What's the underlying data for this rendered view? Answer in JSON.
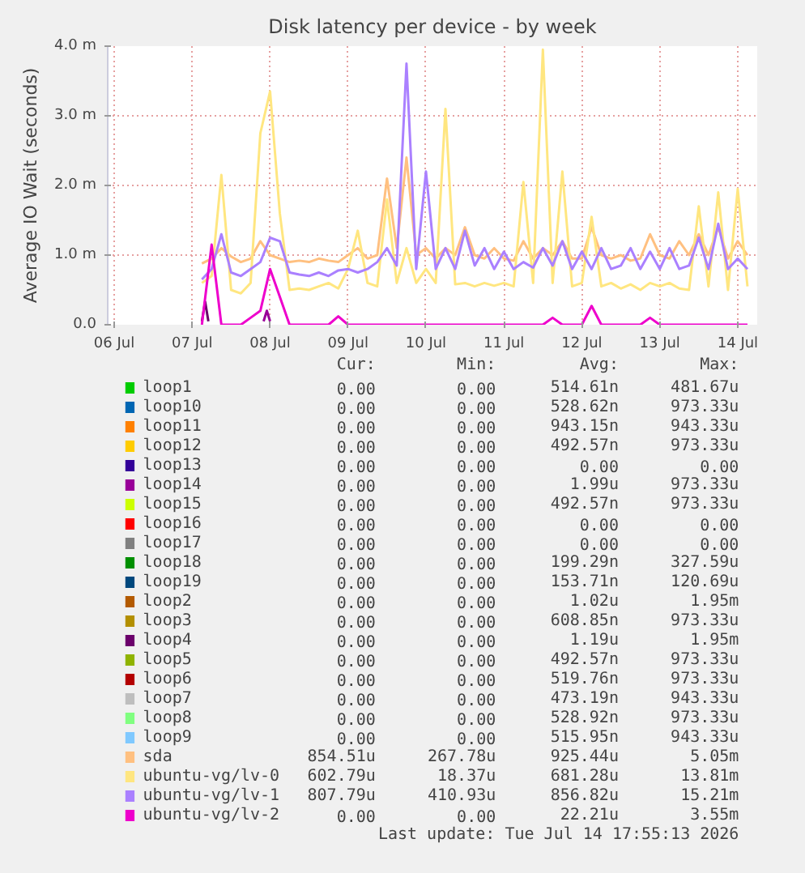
{
  "chart_data": {
    "type": "line",
    "title": "Disk latency per device - by week",
    "ylabel": "Average IO Wait (seconds)",
    "x": [
      "2026-07-07T15:00",
      "2026-07-07T18:00",
      "2026-07-07T21:00",
      "2026-07-08T00:00",
      "2026-07-08T03:00",
      "2026-07-08T06:00",
      "2026-07-08T09:00",
      "2026-07-08T12:00",
      "2026-07-08T15:00",
      "2026-07-08T18:00",
      "2026-07-08T21:00",
      "2026-07-09T00:00",
      "2026-07-09T03:00",
      "2026-07-09T06:00",
      "2026-07-09T09:00",
      "2026-07-09T12:00",
      "2026-07-09T15:00",
      "2026-07-09T18:00",
      "2026-07-09T21:00",
      "2026-07-10T00:00",
      "2026-07-10T03:00",
      "2026-07-10T06:00",
      "2026-07-10T09:00",
      "2026-07-10T12:00",
      "2026-07-10T15:00",
      "2026-07-10T18:00",
      "2026-07-10T21:00",
      "2026-07-11T00:00",
      "2026-07-11T03:00",
      "2026-07-11T06:00",
      "2026-07-11T09:00",
      "2026-07-11T12:00",
      "2026-07-11T15:00",
      "2026-07-11T18:00",
      "2026-07-11T21:00",
      "2026-07-12T00:00",
      "2026-07-12T03:00",
      "2026-07-12T06:00",
      "2026-07-12T09:00",
      "2026-07-12T12:00",
      "2026-07-12T15:00",
      "2026-07-12T18:00",
      "2026-07-12T21:00",
      "2026-07-13T00:00",
      "2026-07-13T03:00",
      "2026-07-13T06:00",
      "2026-07-13T09:00",
      "2026-07-13T12:00",
      "2026-07-13T15:00",
      "2026-07-13T18:00",
      "2026-07-13T21:00",
      "2026-07-14T00:00",
      "2026-07-14T03:00",
      "2026-07-14T06:00",
      "2026-07-14T09:00",
      "2026-07-14T12:00",
      "2026-07-14T15:00"
    ],
    "xlim": [
      "2026-07-06T10:00",
      "2026-07-14T18:00"
    ],
    "xticks": [
      {
        "value": "2026-07-06T12:00",
        "label": "06 Jul"
      },
      {
        "value": "2026-07-07T12:00",
        "label": "07 Jul"
      },
      {
        "value": "2026-07-08T12:00",
        "label": "08 Jul"
      },
      {
        "value": "2026-07-09T12:00",
        "label": "09 Jul"
      },
      {
        "value": "2026-07-10T12:00",
        "label": "10 Jul"
      },
      {
        "value": "2026-07-11T12:00",
        "label": "11 Jul"
      },
      {
        "value": "2026-07-12T12:00",
        "label": "12 Jul"
      },
      {
        "value": "2026-07-13T12:00",
        "label": "13 Jul"
      },
      {
        "value": "2026-07-14T12:00",
        "label": "14 Jul"
      }
    ],
    "ylim": [
      0,
      4
    ],
    "yticks": [
      {
        "value": 0,
        "label": "0.0"
      },
      {
        "value": 1,
        "label": "1.0 m"
      },
      {
        "value": 2,
        "label": "2.0 m"
      },
      {
        "value": 3,
        "label": "3.0 m"
      },
      {
        "value": 4,
        "label": "4.0 m"
      }
    ],
    "grid": true,
    "legend": "bottom",
    "line_style": "solid",
    "series": [
      {
        "name": "loop1",
        "color": "#00cc00",
        "values": [
          null,
          null,
          null,
          null,
          null,
          null,
          null,
          null,
          null,
          null,
          null,
          null,
          null,
          null,
          null,
          null,
          null,
          null,
          null,
          null,
          null,
          null,
          null,
          null,
          null,
          null,
          null,
          null,
          null,
          null,
          null,
          null,
          null,
          null,
          null,
          null,
          null,
          null,
          null,
          null,
          null,
          null,
          null,
          null,
          null,
          null,
          null,
          null,
          null,
          null,
          null,
          null,
          null,
          null,
          null,
          null,
          null
        ]
      },
      {
        "name": "loop10",
        "color": "#0066b3",
        "values": [
          null,
          null,
          null,
          null,
          null,
          null,
          null,
          null,
          null,
          null,
          null,
          null,
          null,
          null,
          null,
          null,
          null,
          null,
          null,
          null,
          null,
          null,
          null,
          null,
          null,
          null,
          null,
          null,
          null,
          null,
          null,
          null,
          null,
          null,
          null,
          null,
          null,
          null,
          null,
          null,
          null,
          null,
          null,
          null,
          null,
          null,
          null,
          null,
          null,
          null,
          null,
          null,
          null,
          null,
          null,
          null,
          null
        ]
      },
      {
        "name": "loop11",
        "color": "#ff8000",
        "values": [
          null,
          null,
          null,
          null,
          null,
          null,
          null,
          null,
          null,
          null,
          null,
          null,
          null,
          null,
          null,
          null,
          null,
          null,
          null,
          null,
          null,
          null,
          null,
          null,
          null,
          null,
          null,
          null,
          null,
          null,
          null,
          null,
          null,
          null,
          null,
          null,
          null,
          null,
          null,
          null,
          null,
          null,
          null,
          null,
          null,
          null,
          null,
          null,
          null,
          null,
          null,
          null,
          null,
          null,
          null,
          null,
          null
        ]
      },
      {
        "name": "loop12",
        "color": "#ffcc00",
        "values": [
          null,
          null,
          null,
          null,
          null,
          null,
          null,
          null,
          null,
          null,
          null,
          null,
          null,
          null,
          null,
          null,
          null,
          null,
          null,
          null,
          null,
          null,
          null,
          null,
          null,
          null,
          null,
          null,
          null,
          null,
          null,
          null,
          null,
          null,
          null,
          null,
          null,
          null,
          null,
          null,
          null,
          null,
          null,
          null,
          null,
          null,
          null,
          null,
          null,
          null,
          null,
          null,
          null,
          null,
          null,
          null,
          null
        ]
      },
      {
        "name": "loop13",
        "color": "#330099",
        "values": [
          null,
          null,
          null,
          null,
          null,
          null,
          null,
          null,
          null,
          null,
          null,
          null,
          null,
          null,
          null,
          null,
          null,
          null,
          null,
          null,
          null,
          null,
          null,
          null,
          null,
          null,
          null,
          null,
          null,
          null,
          null,
          null,
          null,
          null,
          null,
          null,
          null,
          null,
          null,
          null,
          null,
          null,
          null,
          null,
          null,
          null,
          null,
          null,
          null,
          null,
          null,
          null,
          null,
          null,
          null,
          null,
          null
        ]
      },
      {
        "name": "loop14",
        "color": "#990099",
        "x": [
          "2026-07-08T10:00",
          "2026-07-08T11:00",
          "2026-07-08T12:00"
        ],
        "values": [
          0.05,
          0.2,
          0.05
        ]
      },
      {
        "name": "loop15",
        "color": "#ccff00",
        "values": [
          null,
          null,
          null,
          null,
          null,
          null,
          null,
          null,
          null,
          null,
          null,
          null,
          null,
          null,
          null,
          null,
          null,
          null,
          null,
          null,
          null,
          null,
          null,
          null,
          null,
          null,
          null,
          null,
          null,
          null,
          null,
          null,
          null,
          null,
          null,
          null,
          null,
          null,
          null,
          null,
          null,
          null,
          null,
          null,
          null,
          null,
          null,
          null,
          null,
          null,
          null,
          null,
          null,
          null,
          null,
          null,
          null
        ]
      },
      {
        "name": "loop16",
        "color": "#ff0000",
        "values": [
          null,
          null,
          null,
          null,
          null,
          null,
          null,
          null,
          null,
          null,
          null,
          null,
          null,
          null,
          null,
          null,
          null,
          null,
          null,
          null,
          null,
          null,
          null,
          null,
          null,
          null,
          null,
          null,
          null,
          null,
          null,
          null,
          null,
          null,
          null,
          null,
          null,
          null,
          null,
          null,
          null,
          null,
          null,
          null,
          null,
          null,
          null,
          null,
          null,
          null,
          null,
          null,
          null,
          null,
          null,
          null,
          null
        ]
      },
      {
        "name": "loop17",
        "color": "#808080",
        "values": [
          null,
          null,
          null,
          null,
          null,
          null,
          null,
          null,
          null,
          null,
          null,
          null,
          null,
          null,
          null,
          null,
          null,
          null,
          null,
          null,
          null,
          null,
          null,
          null,
          null,
          null,
          null,
          null,
          null,
          null,
          null,
          null,
          null,
          null,
          null,
          null,
          null,
          null,
          null,
          null,
          null,
          null,
          null,
          null,
          null,
          null,
          null,
          null,
          null,
          null,
          null,
          null,
          null,
          null,
          null,
          null,
          null
        ]
      },
      {
        "name": "loop18",
        "color": "#008f00",
        "values": [
          null,
          null,
          null,
          null,
          null,
          null,
          null,
          null,
          null,
          null,
          null,
          null,
          null,
          null,
          null,
          null,
          null,
          null,
          null,
          null,
          null,
          null,
          null,
          null,
          null,
          null,
          null,
          null,
          null,
          null,
          null,
          null,
          null,
          null,
          null,
          null,
          null,
          null,
          null,
          null,
          null,
          null,
          null,
          null,
          null,
          null,
          null,
          null,
          null,
          null,
          null,
          null,
          null,
          null,
          null,
          null,
          null
        ]
      },
      {
        "name": "loop19",
        "color": "#00487d",
        "values": [
          null,
          null,
          null,
          null,
          null,
          null,
          null,
          null,
          null,
          null,
          null,
          null,
          null,
          null,
          null,
          null,
          null,
          null,
          null,
          null,
          null,
          null,
          null,
          null,
          null,
          null,
          null,
          null,
          null,
          null,
          null,
          null,
          null,
          null,
          null,
          null,
          null,
          null,
          null,
          null,
          null,
          null,
          null,
          null,
          null,
          null,
          null,
          null,
          null,
          null,
          null,
          null,
          null,
          null,
          null,
          null,
          null
        ]
      },
      {
        "name": "loop2",
        "color": "#b35a00",
        "values": [
          null,
          null,
          null,
          null,
          null,
          null,
          null,
          null,
          null,
          null,
          null,
          null,
          null,
          null,
          null,
          null,
          null,
          null,
          null,
          null,
          null,
          null,
          null,
          null,
          null,
          null,
          null,
          null,
          null,
          null,
          null,
          null,
          null,
          null,
          null,
          null,
          null,
          null,
          null,
          null,
          null,
          null,
          null,
          null,
          null,
          null,
          null,
          null,
          null,
          null,
          null,
          null,
          null,
          null,
          null,
          null,
          null
        ]
      },
      {
        "name": "loop3",
        "color": "#b38f00",
        "values": [
          null,
          null,
          null,
          null,
          null,
          null,
          null,
          null,
          null,
          null,
          null,
          null,
          null,
          null,
          null,
          null,
          null,
          null,
          null,
          null,
          null,
          null,
          null,
          null,
          null,
          null,
          null,
          null,
          null,
          null,
          null,
          null,
          null,
          null,
          null,
          null,
          null,
          null,
          null,
          null,
          null,
          null,
          null,
          null,
          null,
          null,
          null,
          null,
          null,
          null,
          null,
          null,
          null,
          null,
          null,
          null,
          null
        ]
      },
      {
        "name": "loop4",
        "color": "#6b006b",
        "x": [
          "2026-07-07T15:00",
          "2026-07-07T16:00",
          "2026-07-07T17:00"
        ],
        "values": [
          0.05,
          0.33,
          0.05
        ]
      },
      {
        "name": "loop5",
        "color": "#8fb300",
        "values": [
          null,
          null,
          null,
          null,
          null,
          null,
          null,
          null,
          null,
          null,
          null,
          null,
          null,
          null,
          null,
          null,
          null,
          null,
          null,
          null,
          null,
          null,
          null,
          null,
          null,
          null,
          null,
          null,
          null,
          null,
          null,
          null,
          null,
          null,
          null,
          null,
          null,
          null,
          null,
          null,
          null,
          null,
          null,
          null,
          null,
          null,
          null,
          null,
          null,
          null,
          null,
          null,
          null,
          null,
          null,
          null,
          null
        ]
      },
      {
        "name": "loop6",
        "color": "#b30000",
        "values": [
          null,
          null,
          null,
          null,
          null,
          null,
          null,
          null,
          null,
          null,
          null,
          null,
          null,
          null,
          null,
          null,
          null,
          null,
          null,
          null,
          null,
          null,
          null,
          null,
          null,
          null,
          null,
          null,
          null,
          null,
          null,
          null,
          null,
          null,
          null,
          null,
          null,
          null,
          null,
          null,
          null,
          null,
          null,
          null,
          null,
          null,
          null,
          null,
          null,
          null,
          null,
          null,
          null,
          null,
          null,
          null,
          null
        ]
      },
      {
        "name": "loop7",
        "color": "#bebebe",
        "values": [
          null,
          null,
          null,
          null,
          null,
          null,
          null,
          null,
          null,
          null,
          null,
          null,
          null,
          null,
          null,
          null,
          null,
          null,
          null,
          null,
          null,
          null,
          null,
          null,
          null,
          null,
          null,
          null,
          null,
          null,
          null,
          null,
          null,
          null,
          null,
          null,
          null,
          null,
          null,
          null,
          null,
          null,
          null,
          null,
          null,
          null,
          null,
          null,
          null,
          null,
          null,
          null,
          null,
          null,
          null,
          null,
          null
        ]
      },
      {
        "name": "loop8",
        "color": "#80ff80",
        "values": [
          null,
          null,
          null,
          null,
          null,
          null,
          null,
          null,
          null,
          null,
          null,
          null,
          null,
          null,
          null,
          null,
          null,
          null,
          null,
          null,
          null,
          null,
          null,
          null,
          null,
          null,
          null,
          null,
          null,
          null,
          null,
          null,
          null,
          null,
          null,
          null,
          null,
          null,
          null,
          null,
          null,
          null,
          null,
          null,
          null,
          null,
          null,
          null,
          null,
          null,
          null,
          null,
          null,
          null,
          null,
          null,
          null
        ]
      },
      {
        "name": "loop9",
        "color": "#80c9ff",
        "values": [
          null,
          null,
          null,
          null,
          null,
          null,
          null,
          null,
          null,
          null,
          null,
          null,
          null,
          null,
          null,
          null,
          null,
          null,
          null,
          null,
          null,
          null,
          null,
          null,
          null,
          null,
          null,
          null,
          null,
          null,
          null,
          null,
          null,
          null,
          null,
          null,
          null,
          null,
          null,
          null,
          null,
          null,
          null,
          null,
          null,
          null,
          null,
          null,
          null,
          null,
          null,
          null,
          null,
          null,
          null,
          null,
          null
        ]
      },
      {
        "name": "sda",
        "color": "#ffc080",
        "values": [
          0.88,
          0.95,
          1.1,
          0.98,
          0.9,
          0.95,
          1.2,
          1.0,
          0.95,
          0.9,
          0.92,
          0.9,
          0.95,
          0.92,
          0.9,
          1.0,
          1.1,
          0.95,
          1.0,
          2.1,
          1.1,
          2.4,
          1.0,
          1.1,
          0.95,
          1.1,
          1.0,
          1.4,
          1.0,
          0.95,
          1.1,
          0.95,
          0.92,
          1.2,
          0.95,
          1.1,
          1.0,
          1.2,
          0.95,
          0.95,
          1.4,
          1.0,
          0.95,
          1.0,
          0.92,
          0.95,
          1.3,
          1.0,
          0.95,
          1.2,
          1.0,
          1.3,
          1.0,
          1.4,
          0.95,
          1.2,
          1.0
        ]
      },
      {
        "name": "ubuntu-vg/lv-0",
        "color": "#ffe680",
        "values": [
          0.6,
          0.7,
          2.15,
          0.5,
          0.45,
          0.6,
          2.75,
          3.35,
          1.6,
          0.5,
          0.52,
          0.5,
          0.55,
          0.6,
          0.52,
          0.8,
          1.35,
          0.6,
          0.55,
          1.8,
          0.6,
          1.1,
          0.6,
          0.8,
          0.6,
          3.1,
          0.58,
          0.6,
          0.55,
          0.6,
          0.56,
          0.6,
          0.55,
          2.05,
          0.6,
          3.95,
          0.6,
          2.2,
          0.55,
          0.6,
          1.55,
          0.55,
          0.6,
          0.52,
          0.58,
          0.5,
          0.6,
          0.55,
          0.6,
          0.52,
          0.5,
          1.7,
          0.55,
          1.9,
          0.5,
          1.95,
          0.55
        ]
      },
      {
        "name": "ubuntu-vg/lv-1",
        "color": "#aa80ff",
        "values": [
          0.65,
          0.8,
          1.3,
          0.75,
          0.7,
          0.8,
          0.9,
          1.25,
          1.2,
          0.75,
          0.72,
          0.7,
          0.75,
          0.7,
          0.78,
          0.8,
          0.75,
          0.8,
          0.9,
          1.1,
          0.85,
          3.75,
          0.8,
          2.2,
          0.8,
          1.1,
          0.8,
          1.35,
          0.85,
          1.1,
          0.8,
          1.05,
          0.8,
          0.9,
          0.82,
          1.1,
          0.85,
          1.2,
          0.8,
          1.05,
          0.8,
          1.1,
          0.8,
          0.85,
          1.1,
          0.8,
          1.05,
          0.8,
          1.1,
          0.8,
          0.85,
          1.25,
          0.8,
          1.45,
          0.8,
          0.95,
          0.8
        ]
      },
      {
        "name": "ubuntu-vg/lv-2",
        "color": "#ee00cc",
        "values": [
          0,
          1.15,
          0,
          0,
          0,
          0.1,
          0.2,
          0.8,
          0.4,
          0,
          0,
          0,
          0,
          0,
          0.12,
          0,
          0,
          0,
          0,
          0,
          0,
          0,
          0,
          0,
          0,
          0,
          0,
          0,
          0,
          0,
          0,
          0,
          0,
          0,
          0,
          0,
          0.1,
          0,
          0,
          0,
          0.27,
          0,
          0,
          0,
          0,
          0,
          0.1,
          0,
          0,
          0,
          0,
          0,
          0,
          0,
          0,
          0,
          0
        ]
      }
    ],
    "annotations": [
      "Cur:",
      "Min:",
      "Avg:",
      "Max:",
      "0.00",
      "0.00",
      "514.61n",
      "481.67u",
      "0.00",
      "0.00",
      "528.62n",
      "973.33u",
      "0.00",
      "0.00",
      "943.15n",
      "943.33u",
      "0.00",
      "0.00",
      "492.57n",
      "973.33u",
      "0.00",
      "0.00",
      "0.00",
      "0.00",
      "0.00",
      "0.00",
      "1.99u",
      "973.33u",
      "0.00",
      "0.00",
      "492.57n",
      "973.33u",
      "0.00",
      "0.00",
      "0.00",
      "0.00",
      "0.00",
      "0.00",
      "0.00",
      "0.00",
      "0.00",
      "0.00",
      "199.29n",
      "327.59u",
      "0.00",
      "0.00",
      "153.71n",
      "120.69u",
      "0.00",
      "0.00",
      "1.02u",
      "1.95m",
      "0.00",
      "0.00",
      "608.85n",
      "973.33u",
      "0.00",
      "0.00",
      "1.19u",
      "1.95m",
      "0.00",
      "0.00",
      "492.57n",
      "973.33u",
      "0.00",
      "0.00",
      "519.76n",
      "973.33u",
      "0.00",
      "0.00",
      "473.19n",
      "943.33u",
      "0.00",
      "0.00",
      "528.92n",
      "973.33u",
      "0.00",
      "0.00",
      "515.95n",
      "943.33u",
      "854.51u",
      "267.78u",
      "925.44u",
      "5.05m",
      "602.79u",
      "18.37u",
      "681.28u",
      "13.81m",
      "807.79u",
      "410.93u",
      "856.82u",
      "15.21m",
      "0.00",
      "0.00",
      "22.21u",
      "3.55m",
      "Last update: Tue Jul 14 17:55:13 2026"
    ]
  }
}
